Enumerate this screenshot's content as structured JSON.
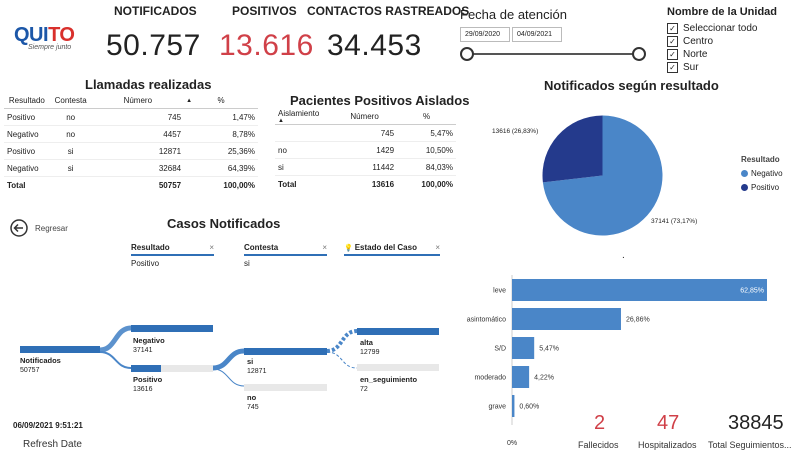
{
  "logo": {
    "text_main": "QUI",
    "text_accent": "TO",
    "tagline": "Siempre junto"
  },
  "kpis": [
    {
      "title": "NOTIFICADOS",
      "value": "50.757",
      "color": "#222222"
    },
    {
      "title": "POSITIVOS",
      "value": "13.616",
      "color": "#d04048"
    },
    {
      "title": "CONTACTOS RASTREADOS",
      "value": "34.453",
      "color": "#222222"
    }
  ],
  "fecha": {
    "label": "Fecha de atención",
    "start": "29/09/2020",
    "end": "04/09/2021"
  },
  "unidad": {
    "label": "Nombre de la Unidad",
    "options": [
      "Seleccionar todo",
      "Centro",
      "Norte",
      "Sur"
    ],
    "checked_mark": "✓"
  },
  "llamadas": {
    "title": "Llamadas realizadas",
    "headers": [
      "Resultado",
      "Contesta",
      "Número",
      "%"
    ],
    "rows": [
      [
        "Positivo",
        "no",
        "745",
        "1,47%"
      ],
      [
        "Negativo",
        "no",
        "4457",
        "8,78%"
      ],
      [
        "Positivo",
        "si",
        "12871",
        "25,36%"
      ],
      [
        "Negativo",
        "si",
        "32684",
        "64,39%"
      ]
    ],
    "total": [
      "Total",
      "",
      "50757",
      "100,00%"
    ]
  },
  "aislados": {
    "title": "Pacientes Positivos Aislados",
    "headers": [
      "Aislamiento",
      "Número",
      "%"
    ],
    "rows": [
      [
        "",
        "745",
        "5,47%"
      ],
      [
        "no",
        "1429",
        "10,50%"
      ],
      [
        "si",
        "11442",
        "84,03%"
      ]
    ],
    "total": [
      "Total",
      "13616",
      "100,00%"
    ]
  },
  "pie": {
    "title": "Notificados según resultado",
    "legend_title": "Resultado",
    "label_pos": "13616 (26,83%)",
    "label_neg": "37141 (73,17%)",
    "colors": {
      "negativo": "#4a86c8",
      "positivo": "#243a8c"
    }
  },
  "chart_data": [
    {
      "type": "pie",
      "title": "Notificados según resultado",
      "legend": "Resultado",
      "categories": [
        "Negativo",
        "Positivo"
      ],
      "values": [
        37141,
        13616
      ],
      "percents": [
        73.17,
        26.83
      ]
    },
    {
      "type": "bar",
      "orientation": "horizontal",
      "categories": [
        "leve",
        "asintomático",
        "S/D",
        "moderado",
        "grave"
      ],
      "values": [
        62.85,
        26.86,
        5.47,
        4.22,
        0.6
      ],
      "value_labels": [
        "62,85%",
        "26,86%",
        "5,47%",
        "4,22%",
        "0,60%"
      ],
      "axis_label": "0%",
      "xlim": [
        0,
        62.85
      ],
      "color": "#4a86c8"
    }
  ],
  "casos": {
    "title": "Casos Notificados",
    "back_label": "Regresar",
    "filters": [
      {
        "label": "Resultado",
        "value": "Positivo"
      },
      {
        "label": "Contesta",
        "value": "si"
      },
      {
        "label": "Estado del Caso",
        "value": ""
      }
    ],
    "close_glyph": "×",
    "bulb_glyph": "💡",
    "root": {
      "label": "Notificados",
      "value": "50757"
    },
    "level1": [
      {
        "label": "Negativo",
        "value": "37141",
        "fill": 1.0
      },
      {
        "label": "Positivo",
        "value": "13616",
        "fill": 0.367
      }
    ],
    "level2": [
      {
        "label": "si",
        "value": "12871",
        "fill": 1.0
      },
      {
        "label": "no",
        "value": "745",
        "fill": 0.0
      }
    ],
    "level3": [
      {
        "label": "alta",
        "value": "12799",
        "fill": 1.0
      },
      {
        "label": "en_seguimiento",
        "value": "72",
        "fill": 0.0
      }
    ]
  },
  "refresh": {
    "datetime": "06/09/2021 9:51:21",
    "label": "Refresh Date"
  },
  "stats": [
    {
      "value": "2",
      "label": "Fallecidos",
      "color": "#d04048"
    },
    {
      "value": "47",
      "label": "Hospitalizados",
      "color": "#d04048"
    },
    {
      "value": "38845",
      "label": "Total Seguimientos...",
      "color": "#222222"
    }
  ],
  "separator_dot": "."
}
